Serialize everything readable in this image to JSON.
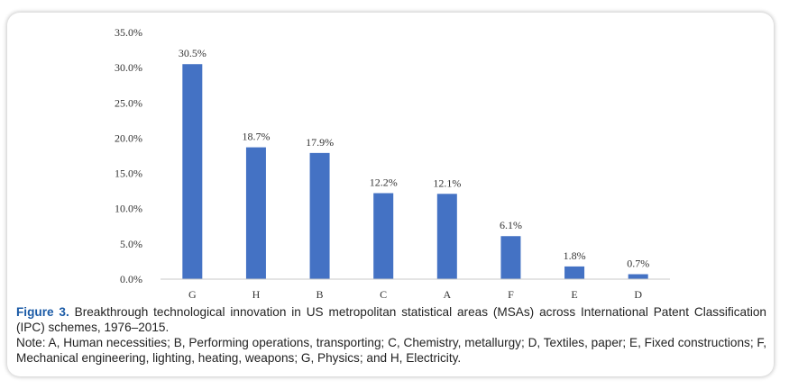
{
  "chart_data": {
    "type": "bar",
    "categories": [
      "G",
      "H",
      "B",
      "C",
      "A",
      "F",
      "E",
      "D"
    ],
    "values": [
      30.5,
      18.7,
      17.9,
      12.2,
      12.1,
      6.1,
      1.8,
      0.7
    ],
    "data_labels": [
      "30.5%",
      "18.7%",
      "17.9%",
      "12.2%",
      "12.1%",
      "6.1%",
      "1.8%",
      "0.7%"
    ],
    "y_ticks": [
      0,
      5,
      10,
      15,
      20,
      25,
      30,
      35
    ],
    "y_tick_labels": [
      "0.0%",
      "5.0%",
      "10.0%",
      "15.0%",
      "20.0%",
      "25.0%",
      "30.0%",
      "35.0%"
    ],
    "ylim": [
      0,
      35
    ],
    "grid": false,
    "bar_color": "#4472c4",
    "title": "",
    "xlabel": "",
    "ylabel": ""
  },
  "caption": {
    "label": "Figure 3.",
    "text": " Breakthrough technological innovation in US metropolitan statistical areas (MSAs) across International Patent Classification (IPC) schemes, 1976–2015.",
    "note": "Note: A, Human necessities; B, Performing operations, transporting; C, Chemistry, metallurgy; D, Textiles, paper; E, Fixed constructions; F, Mechanical engineering, lighting, heating, weapons; G, Physics; and H, Electricity."
  },
  "colors": {
    "figure_label": "#1a5aa6",
    "text": "#222222"
  }
}
